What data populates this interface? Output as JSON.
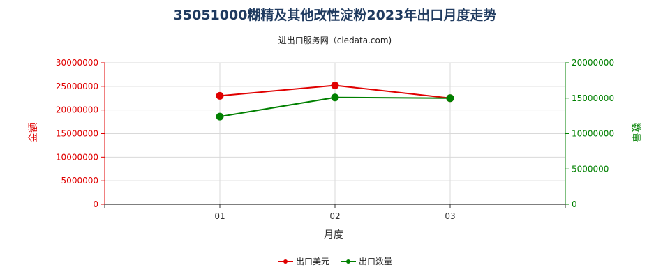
{
  "title": "35051000糊精及其他改性淀粉2023年出口月度走势",
  "subtitle": "进出口服务网（ciedata.com)",
  "colors": {
    "left": "#e00000",
    "right": "#008000",
    "grid": "#d9d9d9",
    "title": "#1f3a5f"
  },
  "chart_data": {
    "type": "line",
    "categories": [
      "01",
      "02",
      "03"
    ],
    "xlabel": "月度",
    "ylabel_left": "金额",
    "ylabel_right": "数量",
    "ylim_left": [
      0,
      30000000
    ],
    "ylim_right": [
      0,
      20000000
    ],
    "yticks_left": [
      "0",
      "5000000",
      "10000000",
      "15000000",
      "20000000",
      "25000000",
      "30000000"
    ],
    "yticks_right": [
      "0",
      "5000000",
      "10000000",
      "15000000",
      "20000000"
    ],
    "grid": true,
    "legend_position": "bottom",
    "series": [
      {
        "name": "出口美元",
        "axis": "left",
        "color": "#e00000",
        "values": [
          23000000,
          25200000,
          22500000
        ]
      },
      {
        "name": "出口数量",
        "axis": "right",
        "color": "#008000",
        "values": [
          12400000,
          15100000,
          15000000
        ]
      }
    ]
  }
}
